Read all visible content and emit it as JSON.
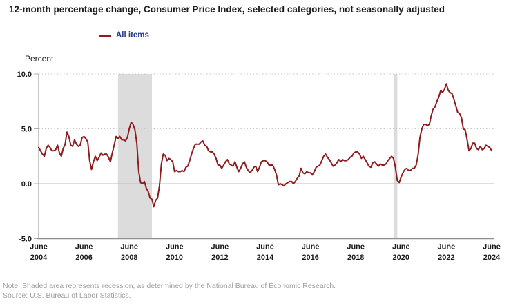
{
  "title": "12-month percentage change, Consumer Price Index, selected categories, not seasonally adjusted",
  "legend": {
    "all_items_label": "All items"
  },
  "note": "Note: Shaded area represents recession, as determined by the National Bureau of Economic Research.",
  "source": "Source: U.S. Bureau of Labor Statistics.",
  "colors": {
    "line": "#8e1c1f",
    "legend_text": "#2b3a8f",
    "recession_band": "#dcdcdc",
    "gridline": "#c6c6c6",
    "zero_line": "#bdbdbd",
    "axis": "#8f8f8f",
    "tick": "#b0b0b0",
    "text": "#1a1a1a",
    "note_text": "#9e9e9e"
  },
  "chart_data": {
    "type": "line",
    "title": "12-month percentage change, Consumer Price Index, selected categories, not seasonally adjusted",
    "xlabel": "",
    "ylabel": "Percent",
    "ylim": [
      -5.0,
      10.0
    ],
    "grid": "dotted horizontal gridlines at 5.0 and 10.0, solid line at 0.0",
    "legend_position": "top-left",
    "x_start": "2004-06",
    "x_end": "2024-06",
    "x_frequency": "monthly",
    "y_ticks": [
      {
        "value": 10.0,
        "label": "10.0"
      },
      {
        "value": 5.0,
        "label": "5.0"
      },
      {
        "value": 0.0,
        "label": "0.0"
      },
      {
        "value": -5.0,
        "label": "-5.0"
      }
    ],
    "x_ticks": [
      {
        "top": "June",
        "bottom": "2004",
        "month_index": 0
      },
      {
        "top": "June",
        "bottom": "2006",
        "month_index": 24
      },
      {
        "top": "June",
        "bottom": "2008",
        "month_index": 48
      },
      {
        "top": "June",
        "bottom": "2010",
        "month_index": 72
      },
      {
        "top": "June",
        "bottom": "2012",
        "month_index": 96
      },
      {
        "top": "June",
        "bottom": "2014",
        "month_index": 120
      },
      {
        "top": "June",
        "bottom": "2016",
        "month_index": 144
      },
      {
        "top": "June",
        "bottom": "2018",
        "month_index": 168
      },
      {
        "top": "June",
        "bottom": "2020",
        "month_index": 192
      },
      {
        "top": "June",
        "bottom": "2022",
        "month_index": 216
      },
      {
        "top": "June",
        "bottom": "2024",
        "month_index": 240
      }
    ],
    "recessions": [
      {
        "start": "2007-12",
        "end": "2009-06"
      },
      {
        "start": "2020-02",
        "end": "2020-04"
      }
    ],
    "series": [
      {
        "name": "All items",
        "color": "#8e1c1f",
        "values": [
          3.3,
          3.0,
          2.7,
          2.5,
          3.2,
          3.5,
          3.3,
          3.0,
          3.0,
          3.1,
          3.5,
          2.8,
          2.5,
          3.2,
          3.6,
          4.7,
          4.3,
          3.5,
          3.4,
          4.0,
          3.6,
          3.4,
          3.5,
          4.2,
          4.3,
          4.1,
          3.8,
          2.1,
          1.3,
          2.0,
          2.5,
          2.1,
          2.4,
          2.8,
          2.6,
          2.7,
          2.7,
          2.4,
          2.0,
          2.8,
          3.5,
          4.3,
          4.1,
          4.3,
          4.0,
          4.0,
          3.9,
          4.2,
          5.0,
          5.6,
          5.4,
          4.9,
          3.7,
          1.1,
          0.1,
          0.0,
          0.2,
          -0.4,
          -0.7,
          -1.3,
          -1.4,
          -2.1,
          -1.5,
          -1.3,
          -0.2,
          1.8,
          2.7,
          2.6,
          2.1,
          2.3,
          2.2,
          2.0,
          1.1,
          1.2,
          1.1,
          1.1,
          1.2,
          1.1,
          1.5,
          1.6,
          2.1,
          2.7,
          3.2,
          3.6,
          3.6,
          3.6,
          3.8,
          3.9,
          3.5,
          3.4,
          3.0,
          2.9,
          2.9,
          2.7,
          2.3,
          1.7,
          1.7,
          1.4,
          1.7,
          2.0,
          2.2,
          1.8,
          1.7,
          1.6,
          2.0,
          1.5,
          1.1,
          1.4,
          1.8,
          2.0,
          1.5,
          1.2,
          1.0,
          1.2,
          1.5,
          1.6,
          1.1,
          1.5,
          2.0,
          2.1,
          2.1,
          2.0,
          1.7,
          1.7,
          1.7,
          1.3,
          0.8,
          -0.1,
          0.0,
          -0.1,
          -0.2,
          0.0,
          0.1,
          0.2,
          0.2,
          0.0,
          0.2,
          0.5,
          0.7,
          1.4,
          1.0,
          0.9,
          1.1,
          1.0,
          1.0,
          0.8,
          1.1,
          1.5,
          1.6,
          1.7,
          2.1,
          2.5,
          2.7,
          2.4,
          2.2,
          1.9,
          1.6,
          1.7,
          1.9,
          2.2,
          2.0,
          2.2,
          2.1,
          2.1,
          2.2,
          2.4,
          2.5,
          2.8,
          2.9,
          2.9,
          2.7,
          2.3,
          2.5,
          2.2,
          1.9,
          1.6,
          1.5,
          1.9,
          2.0,
          1.8,
          1.6,
          1.8,
          1.7,
          1.7,
          1.8,
          2.1,
          2.3,
          2.5,
          2.3,
          1.5,
          0.3,
          0.1,
          0.6,
          1.0,
          1.3,
          1.4,
          1.2,
          1.2,
          1.4,
          1.4,
          1.7,
          2.6,
          4.2,
          5.0,
          5.4,
          5.4,
          5.3,
          5.4,
          6.2,
          6.8,
          7.0,
          7.5,
          7.9,
          8.5,
          8.3,
          8.6,
          9.1,
          8.5,
          8.3,
          8.2,
          7.7,
          7.1,
          6.5,
          6.4,
          6.0,
          5.0,
          4.9,
          4.0,
          3.0,
          3.2,
          3.7,
          3.7,
          3.2,
          3.1,
          3.4,
          3.1,
          3.2,
          3.5,
          3.4,
          3.3,
          3.0
        ]
      }
    ]
  }
}
